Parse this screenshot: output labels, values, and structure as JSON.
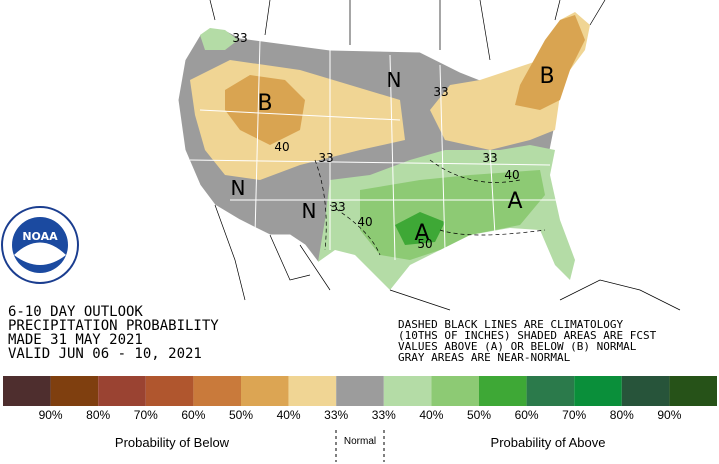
{
  "logo": {
    "text": "NOAA"
  },
  "map_labels": [
    "B",
    "B",
    "N",
    "N",
    "N",
    "A",
    "A",
    "33",
    "40",
    "33",
    "33",
    "40",
    "50",
    "33",
    "40",
    "33"
  ],
  "info": [
    "6-10 DAY OUTLOOK",
    "PRECIPITATION PROBABILITY",
    "MADE  31 MAY 2021",
    "VALID  JUN 06 - 10, 2021"
  ],
  "notes": [
    "DASHED BLACK LINES ARE CLIMATOLOGY",
    "(10THS OF INCHES) SHADED AREAS ARE FCST",
    "VALUES ABOVE (A) OR BELOW (B) NORMAL",
    "GRAY AREAS ARE NEAR-NORMAL"
  ],
  "legend": {
    "colors": [
      "#4e2e2e",
      "#7f3f0f",
      "#9a4332",
      "#b0562e",
      "#c97a3b",
      "#dca553",
      "#f0d594",
      "#9c9c9c",
      "#b4dca6",
      "#8dca74",
      "#3ea836",
      "#2b7a4b",
      "#0a8f3a",
      "#27543a",
      "#265218"
    ],
    "labels": [
      "90%",
      "80%",
      "70%",
      "60%",
      "50%",
      "40%",
      "33%",
      "33%",
      "40%",
      "50%",
      "60%",
      "70%",
      "80%",
      "90%"
    ],
    "below_title": "Probability of Below",
    "normal_title": "Normal",
    "above_title": "Probability of Above"
  }
}
